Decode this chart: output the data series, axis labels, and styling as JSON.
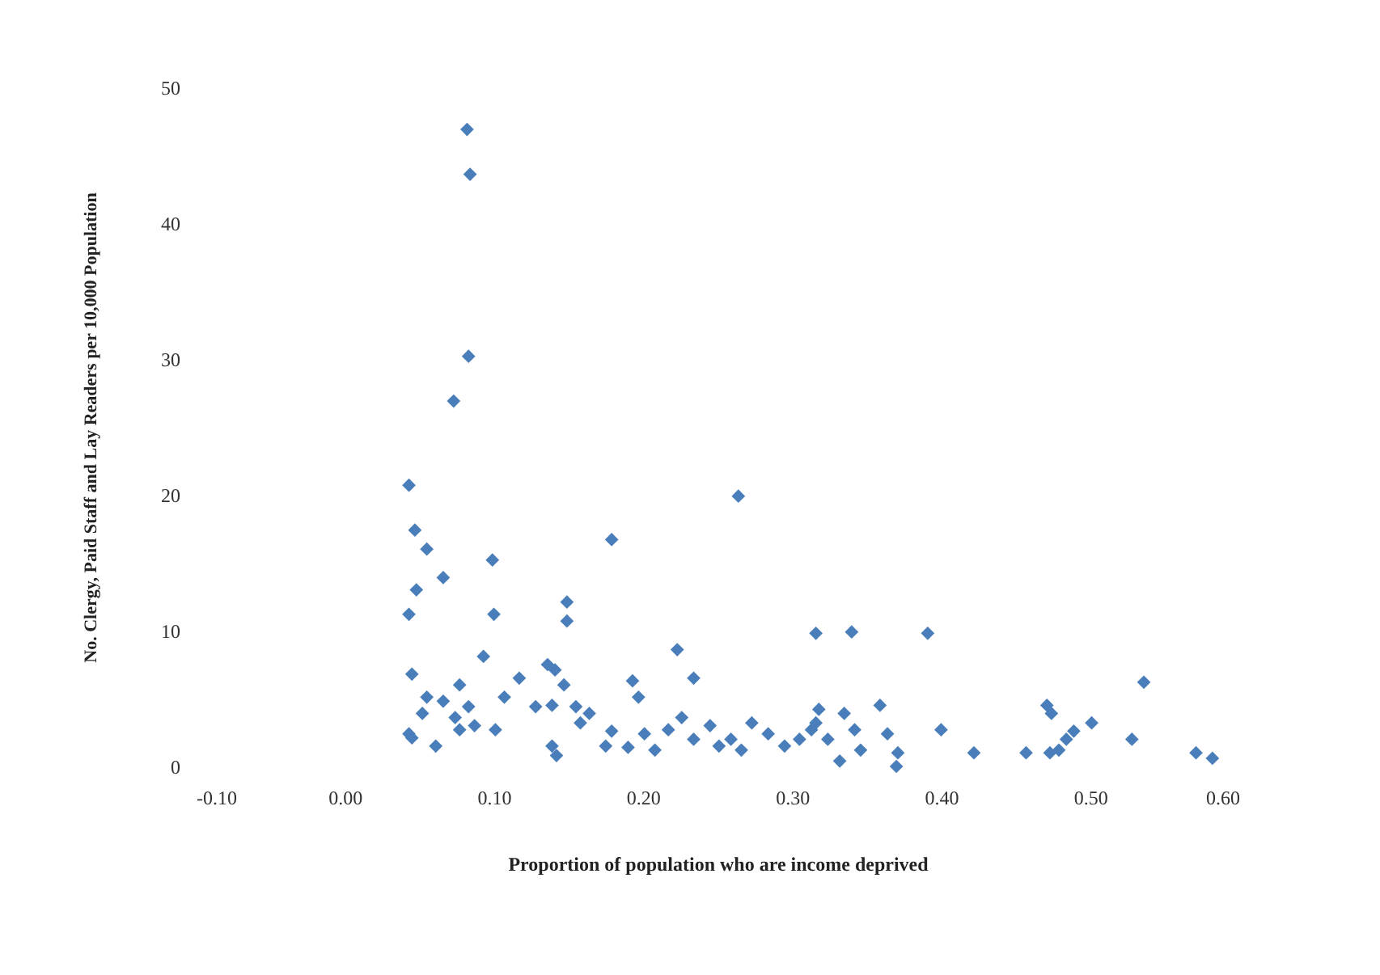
{
  "chart_data": {
    "type": "scatter",
    "xlabel": "Proportion of population who are income deprived",
    "ylabel": "No. Clergy, Paid Staff and Lay Readers  per 10,000 Population",
    "xlim": [
      -0.1,
      0.6
    ],
    "ylim": [
      0,
      50
    ],
    "xticks": [
      {
        "value": -0.1,
        "label": "-0.10"
      },
      {
        "value": 0,
        "label": "0.00"
      },
      {
        "value": 0.1,
        "label": "0.10"
      },
      {
        "value": 0.2,
        "label": "0.20"
      },
      {
        "value": 0.3,
        "label": "0.30"
      },
      {
        "value": 0.4,
        "label": "0.40"
      },
      {
        "value": 0.5,
        "label": "0.50"
      },
      {
        "value": 0.6,
        "label": "0.60"
      }
    ],
    "yticks": [
      0,
      10,
      20,
      30,
      40,
      50
    ],
    "marker": "diamond",
    "grid": false,
    "series": [
      {
        "color": "#4a7ebb",
        "x": [
          0.082,
          0.084,
          0.083,
          0.073,
          0.043,
          0.047,
          0.055,
          0.066,
          0.048,
          0.043,
          0.099,
          0.1,
          0.093,
          0.045,
          0.045,
          0.179,
          0.264,
          0.149,
          0.149,
          0.316,
          0.223,
          0.234,
          0.193,
          0.197,
          0.117,
          0.136,
          0.141,
          0.147,
          0.107,
          0.128,
          0.139,
          0.155,
          0.055,
          0.066,
          0.077,
          0.083,
          0.074,
          0.052,
          0.043,
          0.061,
          0.077,
          0.087,
          0.101,
          0.139,
          0.142,
          0.158,
          0.164,
          0.179,
          0.175,
          0.19,
          0.201,
          0.208,
          0.217,
          0.226,
          0.234,
          0.245,
          0.251,
          0.259,
          0.266,
          0.273,
          0.284,
          0.295,
          0.305,
          0.316,
          0.34,
          0.391,
          0.359,
          0.318,
          0.335,
          0.313,
          0.324,
          0.342,
          0.364,
          0.346,
          0.332,
          0.371,
          0.37,
          0.4,
          0.422,
          0.457,
          0.471,
          0.474,
          0.473,
          0.484,
          0.479,
          0.489,
          0.501,
          0.536,
          0.528,
          0.571,
          0.582
        ],
        "values": [
          46.9,
          43.6,
          30.2,
          26.9,
          20.7,
          17.4,
          16,
          13.9,
          13,
          11.2,
          15.2,
          11.2,
          8.1,
          6.8,
          2.1,
          16.7,
          19.9,
          12.1,
          10.7,
          9.8,
          8.6,
          6.5,
          6.3,
          5.1,
          6.5,
          7.5,
          7.1,
          6,
          5.1,
          4.4,
          4.5,
          4.4,
          5.1,
          4.8,
          6,
          4.4,
          3.6,
          3.9,
          2.4,
          1.5,
          2.7,
          3,
          2.7,
          1.5,
          0.8,
          3.2,
          3.9,
          2.6,
          1.5,
          1.4,
          2.4,
          1.2,
          2.7,
          3.6,
          2,
          3,
          1.5,
          2,
          1.2,
          3.2,
          2.4,
          1.5,
          2,
          3.2,
          9.9,
          9.8,
          4.5,
          4.2,
          3.9,
          2.7,
          2,
          2.7,
          2.4,
          1.2,
          0.4,
          1,
          0,
          2.7,
          1,
          1,
          4.5,
          3.9,
          1,
          2,
          1.2,
          2.6,
          3.2,
          6.2,
          2,
          1,
          0.6
        ]
      }
    ]
  }
}
